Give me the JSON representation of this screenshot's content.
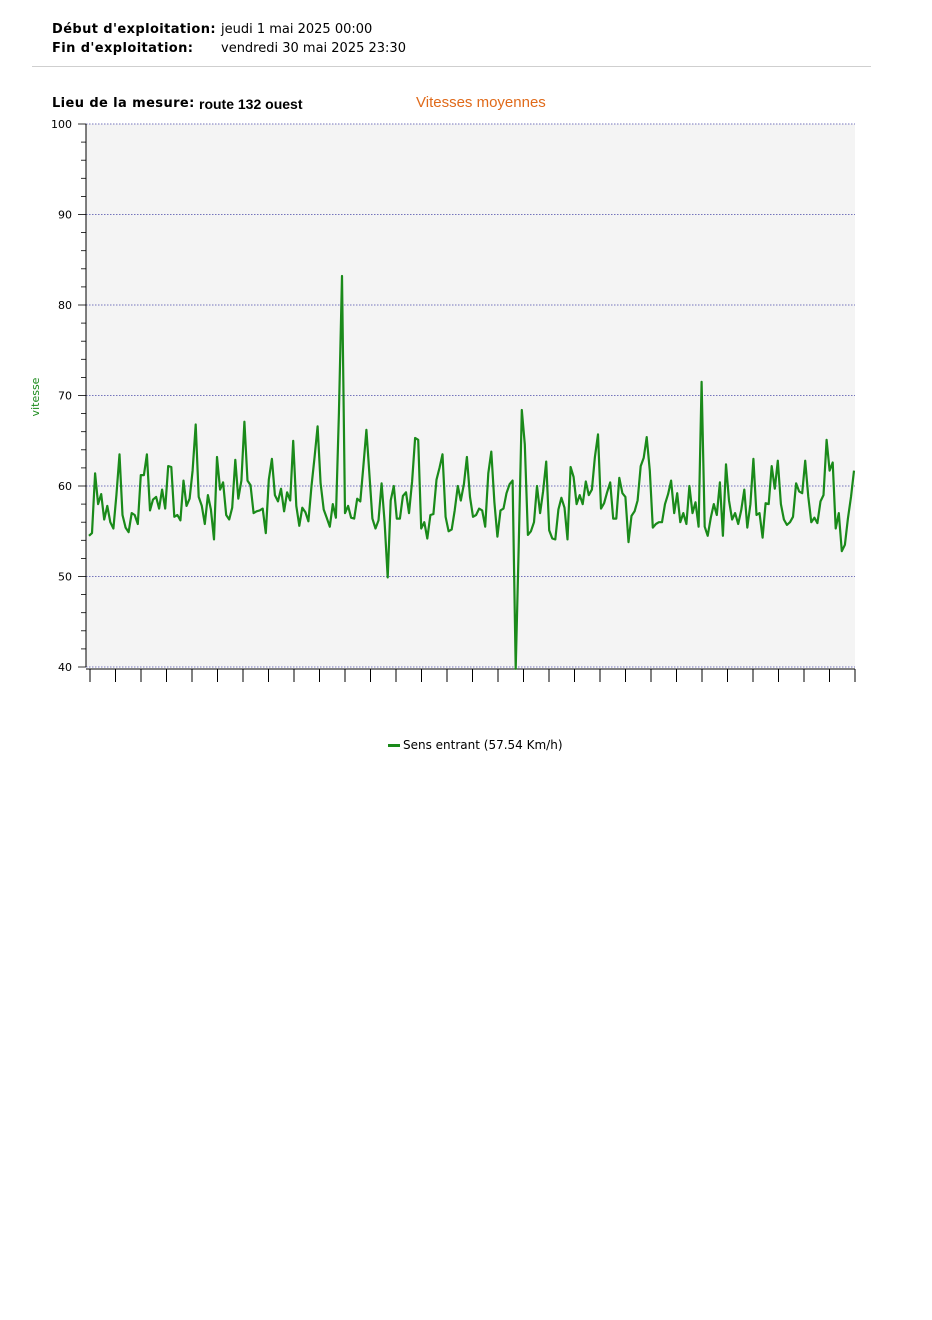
{
  "header": {
    "start_label": "Début d'exploitation:",
    "start_value": "jeudi 1 mai 2025 00:00",
    "end_label": "Fin d'exploitation:",
    "end_value": "vendredi 30 mai 2025 23:30"
  },
  "location": {
    "label": "Lieu de la mesure:",
    "value": "route 132 ouest"
  },
  "chart_data": {
    "type": "line",
    "title": "Vitesses moyennes",
    "ylabel": "vitesse",
    "xlabel": "",
    "ylim": [
      40,
      100
    ],
    "yticks": [
      40,
      50,
      60,
      70,
      80,
      90,
      100
    ],
    "grid": "horizontal dotted",
    "x_minor_ticks": 30,
    "background": "#f4f4f4",
    "series": [
      {
        "name": "Sens entrant (57.54 Km/h)",
        "color": "#1a8a1a",
        "values": [
          54.5,
          54.8,
          61.4,
          58.0,
          59.1,
          56.3,
          57.8,
          56.0,
          55.3,
          59.0,
          63.5,
          56.8,
          55.4,
          54.9,
          57.0,
          56.8,
          55.8,
          61.2,
          61.2,
          63.5,
          57.3,
          58.5,
          58.8,
          57.5,
          59.6,
          57.5,
          62.2,
          62.1,
          56.6,
          56.8,
          56.2,
          60.6,
          57.8,
          58.6,
          61.7,
          66.8,
          58.8,
          57.8,
          55.8,
          59.0,
          57.4,
          54.1,
          63.2,
          59.6,
          60.4,
          56.8,
          56.3,
          57.6,
          62.9,
          58.6,
          60.6,
          67.1,
          60.6,
          60.1,
          57.0,
          57.2,
          57.3,
          57.5,
          54.8,
          60.7,
          63.0,
          59.0,
          58.3,
          59.7,
          57.2,
          59.3,
          58.4,
          65.0,
          57.8,
          55.6,
          57.6,
          57.1,
          56.1,
          60.0,
          63.1,
          66.6,
          60.3,
          57.4,
          56.5,
          55.5,
          58.0,
          56.5,
          68.0,
          83.2,
          57.0,
          57.8,
          56.5,
          56.4,
          58.6,
          58.3,
          62.1,
          66.2,
          61.3,
          56.4,
          55.3,
          56.2,
          60.3,
          56.0,
          49.9,
          58.4,
          60.0,
          56.4,
          56.4,
          58.9,
          59.3,
          57.0,
          60.5,
          65.3,
          65.1,
          55.3,
          56.0,
          54.2,
          56.8,
          56.9,
          60.7,
          62.0,
          63.5,
          56.6,
          55.0,
          55.2,
          57.3,
          60.0,
          58.4,
          60.2,
          63.2,
          58.8,
          56.6,
          56.8,
          57.5,
          57.3,
          55.5,
          61.4,
          63.8,
          58.2,
          54.4,
          57.3,
          57.5,
          59.2,
          60.2,
          60.6,
          39.8,
          53.3,
          68.4,
          64.6,
          54.6,
          55.0,
          56.0,
          60.0,
          57.0,
          59.4,
          62.7,
          55.1,
          54.2,
          54.1,
          57.4,
          58.7,
          57.6,
          54.1,
          62.1,
          61.0,
          58.0,
          59.0,
          58.0,
          60.5,
          59.0,
          59.6,
          63.2,
          65.7,
          57.5,
          58.1,
          59.3,
          60.4,
          56.4,
          56.4,
          60.9,
          59.2,
          58.8,
          53.8,
          56.7,
          57.2,
          58.4,
          62.2,
          63.1,
          65.4,
          61.7,
          55.4,
          55.8,
          56.0,
          56.0,
          58.0,
          59.1,
          60.6,
          57.0,
          59.2,
          56.0,
          57.0,
          55.8,
          60.0,
          57.0,
          58.2,
          55.5,
          71.5,
          55.5,
          54.5,
          56.5,
          58.0,
          56.8,
          60.4,
          54.5,
          62.4,
          58.4,
          56.3,
          57.0,
          55.8,
          57.3,
          59.6,
          55.4,
          58.0,
          63.0,
          56.8,
          57.0,
          54.3,
          58.1,
          58.0,
          62.2,
          59.7,
          62.8,
          58.0,
          56.3,
          55.7,
          56.0,
          56.6,
          60.3,
          59.4,
          59.2,
          62.8,
          58.8,
          56.0,
          56.5,
          55.9,
          58.3,
          59.0,
          65.1,
          61.7,
          62.6,
          55.3,
          57.0,
          52.8,
          53.5,
          56.4,
          58.8,
          61.7
        ]
      }
    ]
  }
}
